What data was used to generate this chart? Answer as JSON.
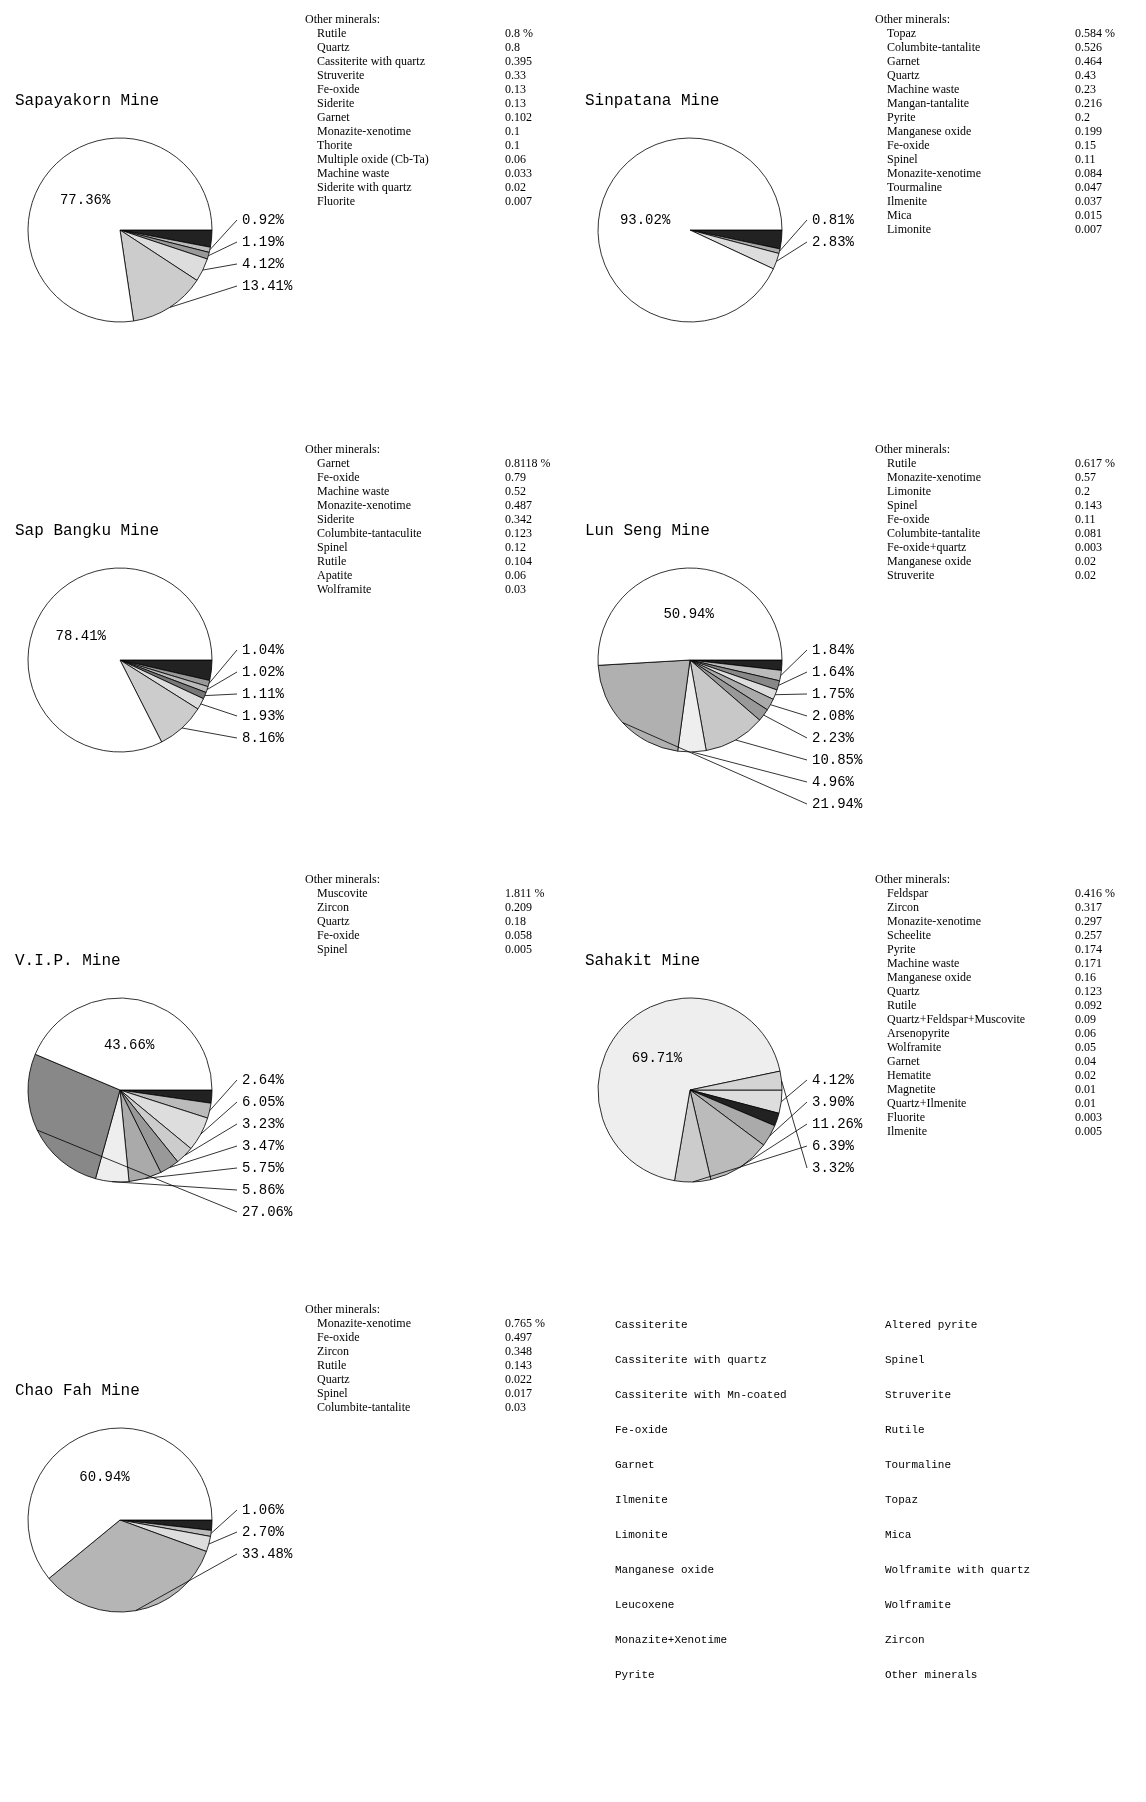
{
  "chart_data": [
    {
      "type": "pie",
      "title": "Sapayakorn Mine",
      "categories": [
        null,
        null,
        null,
        null,
        null,
        null
      ],
      "values": [
        3.0,
        0.92,
        1.19,
        4.12,
        13.41,
        77.36
      ],
      "value_labels": [
        null,
        "0.92%",
        "1.19%",
        "4.12%",
        "13.41%",
        "77.36%"
      ],
      "colors": [
        "#222222",
        "#bbbbbb",
        "#999999",
        "#dddddd",
        "#cccccc",
        "#ffffff"
      ],
      "annotations": [
        "Other minerals:",
        "Rutile",
        "0.8 %",
        "Quartz",
        "0.8",
        "Cassiterite with quartz",
        "0.395",
        "Struverite",
        "0.33",
        "Fe-oxide",
        "0.13",
        "Siderite",
        "0.13",
        "Garnet",
        "0.102",
        "Monazite-xenotime",
        "0.1",
        "Thorite",
        "0.1",
        "Multiple oxide (Cb-Ta)",
        "0.06",
        "Machine waste",
        "0.033",
        "Siderite with quartz",
        "0.02",
        "Fluorite",
        "0.007"
      ]
    },
    {
      "type": "pie",
      "title": "Sinpatana Mine",
      "categories": [
        null,
        null,
        null,
        null
      ],
      "values": [
        3.3,
        0.81,
        2.83,
        93.02
      ],
      "value_labels": [
        null,
        "0.81%",
        "2.83%",
        "93.02%"
      ],
      "colors": [
        "#222222",
        "#aaaaaa",
        "#dddddd",
        "#ffffff"
      ],
      "annotations": [
        "Other minerals:",
        "Topaz",
        "0.584 %",
        "Columbite-tantalite",
        "0.526",
        "Garnet",
        "0.464",
        "Quartz",
        "0.43",
        "Machine waste",
        "0.23",
        "Mangan-tantalite",
        "0.216",
        "Pyrite",
        "0.2",
        "Manganese oxide",
        "0.199",
        "Fe-oxide",
        "0.15",
        "Spinel",
        "0.11",
        "Monazite-xenotime",
        "0.084",
        "Tourmaline",
        "0.047",
        "Ilmenite",
        "0.037",
        "Mica",
        "0.015",
        "Limonite",
        "0.007"
      ]
    },
    {
      "type": "pie",
      "title": "Sap Bangku Mine",
      "categories": [
        null,
        null,
        null,
        null,
        null,
        null,
        null
      ],
      "values": [
        3.4,
        1.04,
        1.02,
        1.11,
        1.93,
        8.16,
        78.41
      ],
      "value_labels": [
        null,
        "1.04%",
        "1.02%",
        "1.11%",
        "1.93%",
        "8.16%",
        "78.41%"
      ],
      "colors": [
        "#222222",
        "#999999",
        "#bbbbbb",
        "#777777",
        "#dddddd",
        "#cccccc",
        "#ffffff"
      ],
      "annotations": [
        "Other minerals:",
        "Garnet",
        "0.8118 %",
        "Fe-oxide",
        "0.79",
        "Machine waste",
        "0.52",
        "Monazite-xenotime",
        "0.487",
        "Siderite",
        "0.342",
        "Columbite-tantaculite",
        "0.123",
        "Spinel",
        "0.12",
        "Rutile",
        "0.104",
        "Apatite",
        "0.06",
        "Wolframite",
        "0.03"
      ]
    },
    {
      "type": "pie",
      "title": "Lun Seng Mine",
      "categories": [
        null,
        null,
        null,
        null,
        null,
        null,
        null,
        null,
        null,
        null
      ],
      "values": [
        1.8,
        1.84,
        1.64,
        1.75,
        2.08,
        2.23,
        10.85,
        4.96,
        21.94,
        50.94
      ],
      "value_labels": [
        null,
        "1.84%",
        "1.64%",
        "1.75%",
        "2.08%",
        "2.23%",
        "10.85%",
        "4.96%",
        "21.94%",
        "50.94%"
      ],
      "colors": [
        "#222222",
        "#bbbbbb",
        "#888888",
        "#dddddd",
        "#aaaaaa",
        "#999999",
        "#c8c8c8",
        "#eeeeee",
        "#b0b0b0",
        "#ffffff"
      ],
      "annotations": [
        "Other minerals:",
        "Rutile",
        "0.617 %",
        "Monazite-xenotime",
        "0.57",
        "Limonite",
        "0.2",
        "Spinel",
        "0.143",
        "Fe-oxide",
        "0.11",
        "Columbite-tantalite",
        "0.081",
        "Fe-oxide+quartz",
        "0.003",
        "Manganese  oxide",
        "0.02",
        "Struverite",
        "0.02"
      ]
    },
    {
      "type": "pie",
      "title": "V.I.P. Mine",
      "categories": [
        null,
        null,
        null,
        null,
        null,
        null,
        null,
        null,
        null
      ],
      "values": [
        2.3,
        2.64,
        6.05,
        3.23,
        3.47,
        5.75,
        5.86,
        27.06,
        43.66
      ],
      "value_labels": [
        null,
        "2.64%",
        "6.05%",
        "3.23%",
        "3.47%",
        "5.75%",
        "5.86%",
        "27.06%",
        "43.66%"
      ],
      "colors": [
        "#222222",
        "#bbbbbb",
        "#dddddd",
        "#cccccc",
        "#999999",
        "#aaaaaa",
        "#eeeeee",
        "#888888",
        "#ffffff"
      ],
      "annotations": [
        "Other minerals:",
        "Muscovite",
        "1.811 %",
        "Zircon",
        "0.209",
        "Quartz",
        "0.18",
        "Fe-oxide",
        "0.058",
        "Spinel",
        "0.005"
      ]
    },
    {
      "type": "pie",
      "title": "Sahakit Mine",
      "categories": [
        null,
        null,
        null,
        null,
        null,
        null,
        null
      ],
      "values": [
        4.12,
        2.3,
        3.9,
        11.26,
        6.39,
        69.71,
        3.32
      ],
      "value_labels": [
        "4.12%",
        null,
        "3.90%",
        "11.26%",
        "6.39%",
        "69.71%",
        "3.32%"
      ],
      "colors": [
        "#dddddd",
        "#222222",
        "#aaaaaa",
        "#bbbbbb",
        "#cccccc",
        "#eeeeee",
        "#d4d4d4"
      ],
      "annotations": [
        "Other minerals:",
        "Feldspar",
        "0.416 %",
        "Zircon",
        "0.317",
        "Monazite-xenotime",
        "0.297",
        "Scheelite",
        "0.257",
        "Pyrite",
        "0.174",
        "Machine waste",
        "0.171",
        "Manganese  oxide",
        "0.16",
        "Quartz",
        "0.123",
        "Rutile",
        "0.092",
        "Quartz+Feldspar+Muscovite",
        "0.09",
        "Arsenopyrite",
        "0.06",
        "Wolframite",
        "0.05",
        "Garnet",
        "0.04",
        "Hematite",
        "0.02",
        "Magnetite",
        "0.01",
        "Quartz+Ilmenite",
        "0.01",
        "Fluorite",
        "0.003",
        "Ilmenite",
        "0.005"
      ]
    },
    {
      "type": "pie",
      "title": "Chao Fah Mine",
      "categories": [
        null,
        null,
        null,
        null,
        null
      ],
      "values": [
        1.8,
        1.06,
        2.7,
        33.48,
        60.94
      ],
      "value_labels": [
        null,
        "1.06%",
        "2.70%",
        "33.48%",
        "60.94%"
      ],
      "colors": [
        "#222222",
        "#bbbbbb",
        "#dddddd",
        "#b5b5b5",
        "#ffffff"
      ],
      "annotations": [
        "Other minerals:",
        "Monazite-xenotime",
        "0.765 %",
        "Fe-oxide",
        "0.497",
        "Zircon",
        "0.348",
        "Rutile",
        "0.143",
        "Quartz",
        "0.022",
        "Spinel",
        "0.017",
        "Columbite-tantalite",
        "0.03"
      ]
    },
    {
      "type": "other",
      "annotations": [
        "Cassiterite",
        "Cassiterite with quartz",
        "Cassiterite with Mn-coated",
        "Fe-oxide",
        "Garnet",
        "Ilmenite",
        "Limonite",
        "Manganese oxide",
        "Leucoxene",
        "Monazite+Xenotime",
        "Pyrite",
        "Altered pyrite",
        "Spinel",
        "Struverite",
        "Rutile",
        "Tourmaline",
        "Topaz",
        "Mica",
        "Wolframite with quartz",
        "Wolframite",
        "Zircon",
        "Other minerals"
      ]
    }
  ]
}
